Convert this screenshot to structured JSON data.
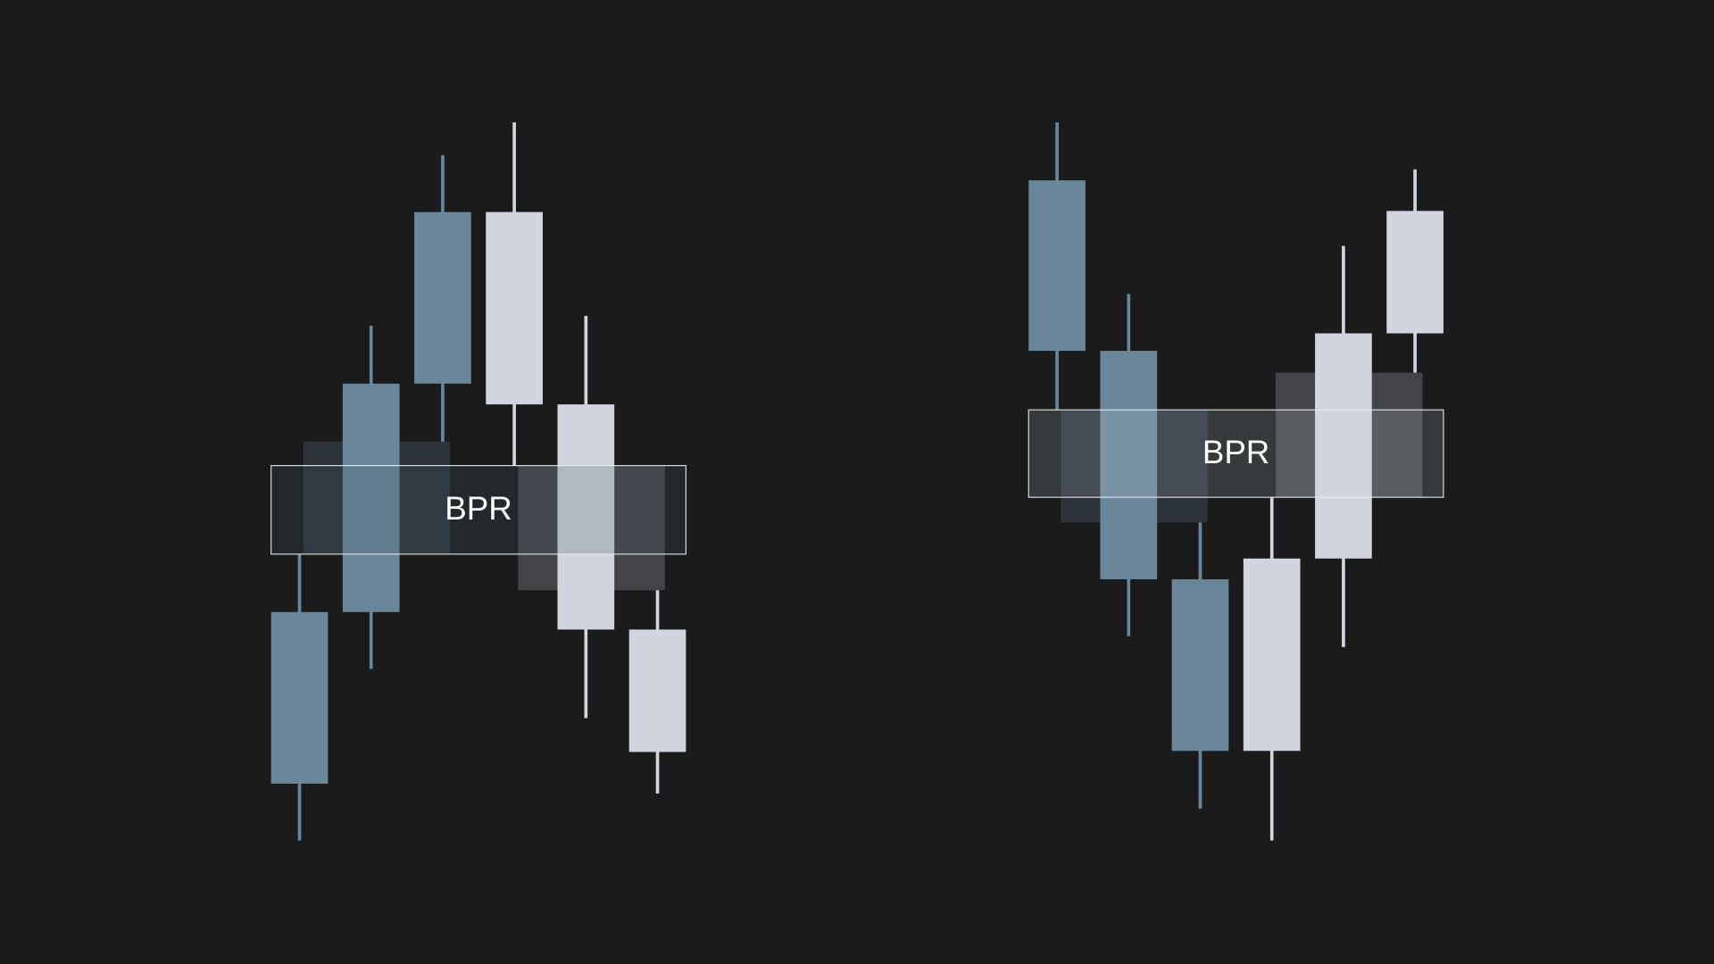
{
  "chart_data": [
    {
      "type": "candlestick",
      "ylim": [
        0,
        800
      ],
      "candles": [
        {
          "open": 83,
          "high": 293,
          "low": 31,
          "close": 240,
          "color": "#6a8799"
        },
        {
          "open": 240,
          "high": 502,
          "low": 188,
          "close": 449,
          "color": "#6a8799"
        },
        {
          "open": 449,
          "high": 658,
          "low": 396,
          "close": 606,
          "color": "#6a8799"
        },
        {
          "open": 606,
          "high": 688,
          "low": 374,
          "close": 430,
          "color": "#d2d5de"
        },
        {
          "open": 430,
          "high": 511,
          "low": 143,
          "close": 224,
          "color": "#d2d5de"
        },
        {
          "open": 224,
          "high": 260,
          "low": 74,
          "close": 112,
          "color": "#d2d5de"
        }
      ],
      "zones": [
        {
          "from": 293,
          "to": 396,
          "color": "#2c3238"
        },
        {
          "from": 260,
          "to": 374,
          "color": "#444446"
        },
        {
          "label": "BPR",
          "from": 293,
          "to": 374,
          "color": "rgba(70,85,100,0.22)"
        }
      ]
    },
    {
      "type": "candlestick",
      "ylim": [
        0,
        800
      ],
      "candles": [
        {
          "open": 635,
          "high": 688,
          "low": 425,
          "close": 479,
          "color": "#6a8799"
        },
        {
          "open": 479,
          "high": 531,
          "low": 218,
          "close": 270,
          "color": "#6a8799"
        },
        {
          "open": 270,
          "high": 322,
          "low": 60,
          "close": 113,
          "color": "#6a8799"
        },
        {
          "open": 113,
          "high": 345,
          "low": 31,
          "close": 289,
          "color": "#d2d5de"
        },
        {
          "open": 289,
          "high": 575,
          "low": 208,
          "close": 495,
          "color": "#d2d5de"
        },
        {
          "open": 495,
          "high": 645,
          "low": 459,
          "close": 607,
          "color": "#d2d5de"
        }
      ],
      "zones": [
        {
          "from": 322,
          "to": 425,
          "color": "#2c3238"
        },
        {
          "from": 345,
          "to": 459,
          "color": "#444446"
        },
        {
          "label": "BPR",
          "from": 345,
          "to": 425,
          "color": "rgba(210,215,225,0.16)"
        }
      ]
    }
  ]
}
